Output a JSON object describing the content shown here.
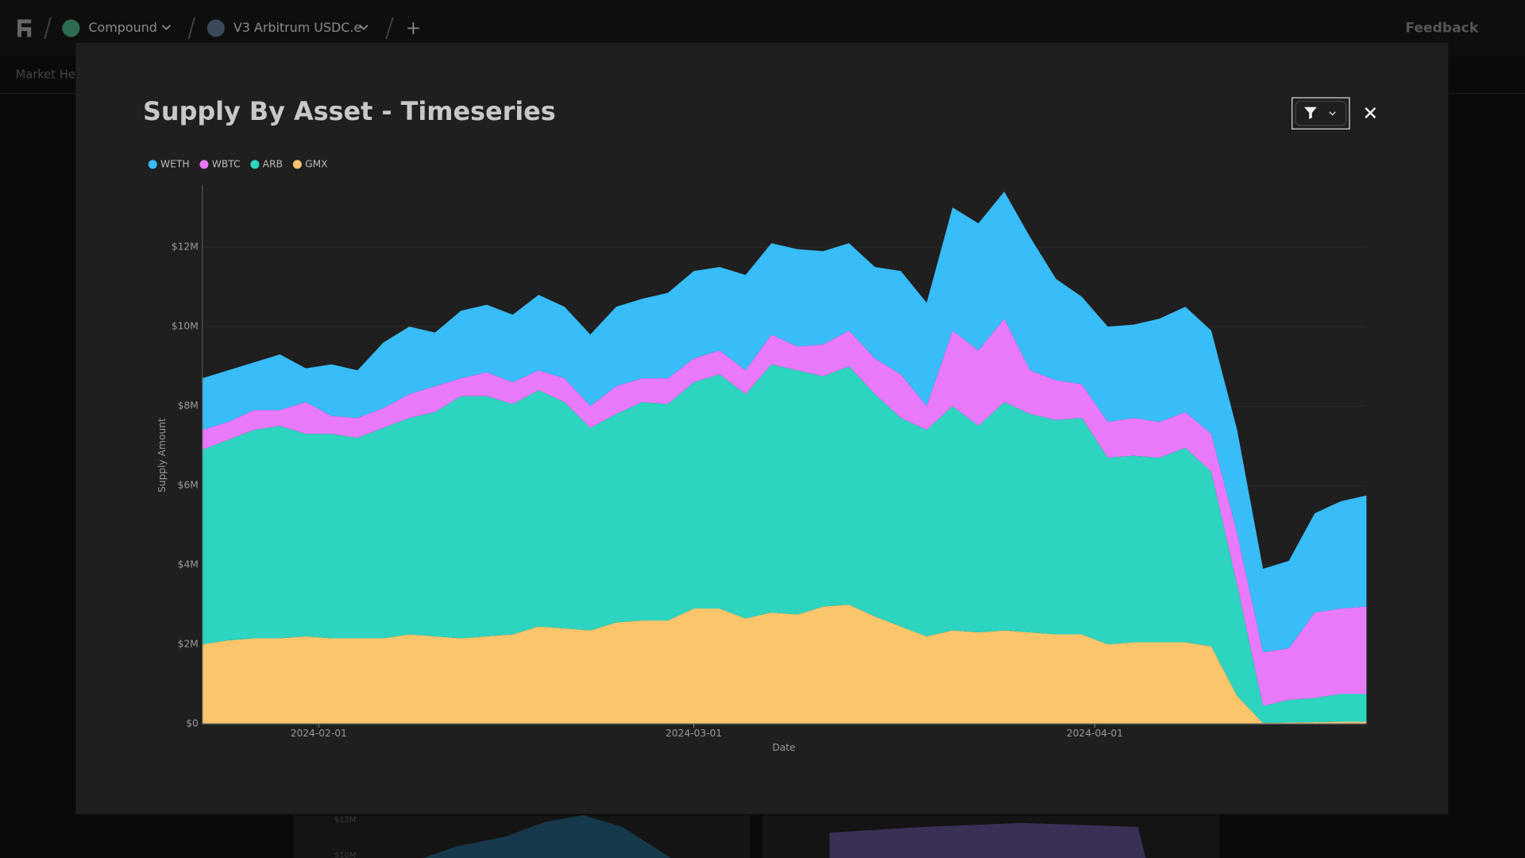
{
  "top_bar": {
    "protocol": "Compound",
    "market": "V3 Arbitrum USDC.e",
    "feedback": "Feedback",
    "tab": "Market Hea"
  },
  "background_panel": {
    "yticks": [
      "$12M",
      "$10M"
    ]
  },
  "chart_data": {
    "type": "stacked_area",
    "title": "Supply By Asset - Timeseries",
    "xlabel": "Date",
    "ylabel": "Supply Amount",
    "x": [
      "2024-01-23",
      "2024-01-25",
      "2024-01-27",
      "2024-01-29",
      "2024-01-31",
      "2024-02-02",
      "2024-02-04",
      "2024-02-06",
      "2024-02-08",
      "2024-02-10",
      "2024-02-12",
      "2024-02-14",
      "2024-02-16",
      "2024-02-18",
      "2024-02-20",
      "2024-02-22",
      "2024-02-24",
      "2024-02-26",
      "2024-02-28",
      "2024-03-01",
      "2024-03-03",
      "2024-03-05",
      "2024-03-07",
      "2024-03-09",
      "2024-03-11",
      "2024-03-13",
      "2024-03-15",
      "2024-03-17",
      "2024-03-19",
      "2024-03-21",
      "2024-03-23",
      "2024-03-25",
      "2024-03-27",
      "2024-03-29",
      "2024-03-31",
      "2024-04-02",
      "2024-04-04",
      "2024-04-06",
      "2024-04-08",
      "2024-04-10",
      "2024-04-12",
      "2024-04-14",
      "2024-04-16",
      "2024-04-18",
      "2024-04-20",
      "2024-04-22"
    ],
    "series": [
      {
        "name": "WETH",
        "color": "#38bdf8",
        "values": [
          1.3,
          1.3,
          1.2,
          1.4,
          0.85,
          1.3,
          1.2,
          1.65,
          1.7,
          1.35,
          1.7,
          1.7,
          1.7,
          1.9,
          1.8,
          1.8,
          2.0,
          2.0,
          2.15,
          2.2,
          2.1,
          2.4,
          2.3,
          2.45,
          2.35,
          2.2,
          2.3,
          2.6,
          2.6,
          3.1,
          3.2,
          3.2,
          3.35,
          2.55,
          2.2,
          2.4,
          2.35,
          2.6,
          2.65,
          2.6,
          2.6,
          2.1,
          2.2,
          2.5,
          2.7,
          2.8
        ]
      },
      {
        "name": "WBTC",
        "color": "#e879f9",
        "values": [
          0.5,
          0.45,
          0.5,
          0.4,
          0.8,
          0.45,
          0.5,
          0.5,
          0.6,
          0.65,
          0.45,
          0.6,
          0.55,
          0.5,
          0.6,
          0.55,
          0.7,
          0.6,
          0.65,
          0.6,
          0.6,
          0.6,
          0.75,
          0.6,
          0.8,
          0.9,
          0.9,
          1.1,
          0.6,
          1.9,
          1.9,
          2.1,
          1.1,
          1.0,
          0.85,
          0.9,
          0.95,
          0.9,
          0.9,
          0.95,
          1.3,
          1.35,
          1.3,
          2.15,
          2.15,
          2.2
        ]
      },
      {
        "name": "ARB",
        "color": "#2dd4bf",
        "values": [
          4.9,
          5.05,
          5.25,
          5.35,
          5.1,
          5.15,
          5.05,
          5.3,
          5.45,
          5.65,
          6.1,
          6.05,
          5.8,
          5.95,
          5.7,
          5.1,
          5.25,
          5.5,
          5.45,
          5.7,
          5.9,
          5.65,
          6.25,
          6.15,
          5.8,
          6.0,
          5.6,
          5.25,
          5.2,
          5.65,
          5.2,
          5.75,
          5.5,
          5.4,
          5.45,
          4.7,
          4.7,
          4.65,
          4.9,
          4.4,
          2.8,
          0.43,
          0.57,
          0.61,
          0.7,
          0.7
        ]
      },
      {
        "name": "GMX",
        "color": "#fac56b",
        "values": [
          2.0,
          2.1,
          2.15,
          2.15,
          2.2,
          2.15,
          2.15,
          2.15,
          2.25,
          2.2,
          2.15,
          2.2,
          2.25,
          2.45,
          2.4,
          2.35,
          2.55,
          2.6,
          2.6,
          2.9,
          2.9,
          2.65,
          2.8,
          2.75,
          2.95,
          3.0,
          2.7,
          2.45,
          2.2,
          2.35,
          2.3,
          2.35,
          2.3,
          2.25,
          2.25,
          2.0,
          2.05,
          2.05,
          2.05,
          1.95,
          0.7,
          0.02,
          0.03,
          0.04,
          0.05,
          0.05
        ]
      }
    ],
    "xlim": [
      "2024-01-23",
      "2024-04-22"
    ],
    "xticks": [
      "2024-02-01",
      "2024-03-01",
      "2024-04-01"
    ],
    "ylim": [
      0,
      13.57
    ],
    "yticks": [
      {
        "value": 0,
        "label": "$0"
      },
      {
        "value": 2,
        "label": "$2M"
      },
      {
        "value": 4,
        "label": "$4M"
      },
      {
        "value": 6,
        "label": "$6M"
      },
      {
        "value": 8,
        "label": "$8M"
      },
      {
        "value": 10,
        "label": "$10M"
      },
      {
        "value": 12,
        "label": "$12M"
      }
    ],
    "grid": true,
    "legend": "top-left"
  }
}
